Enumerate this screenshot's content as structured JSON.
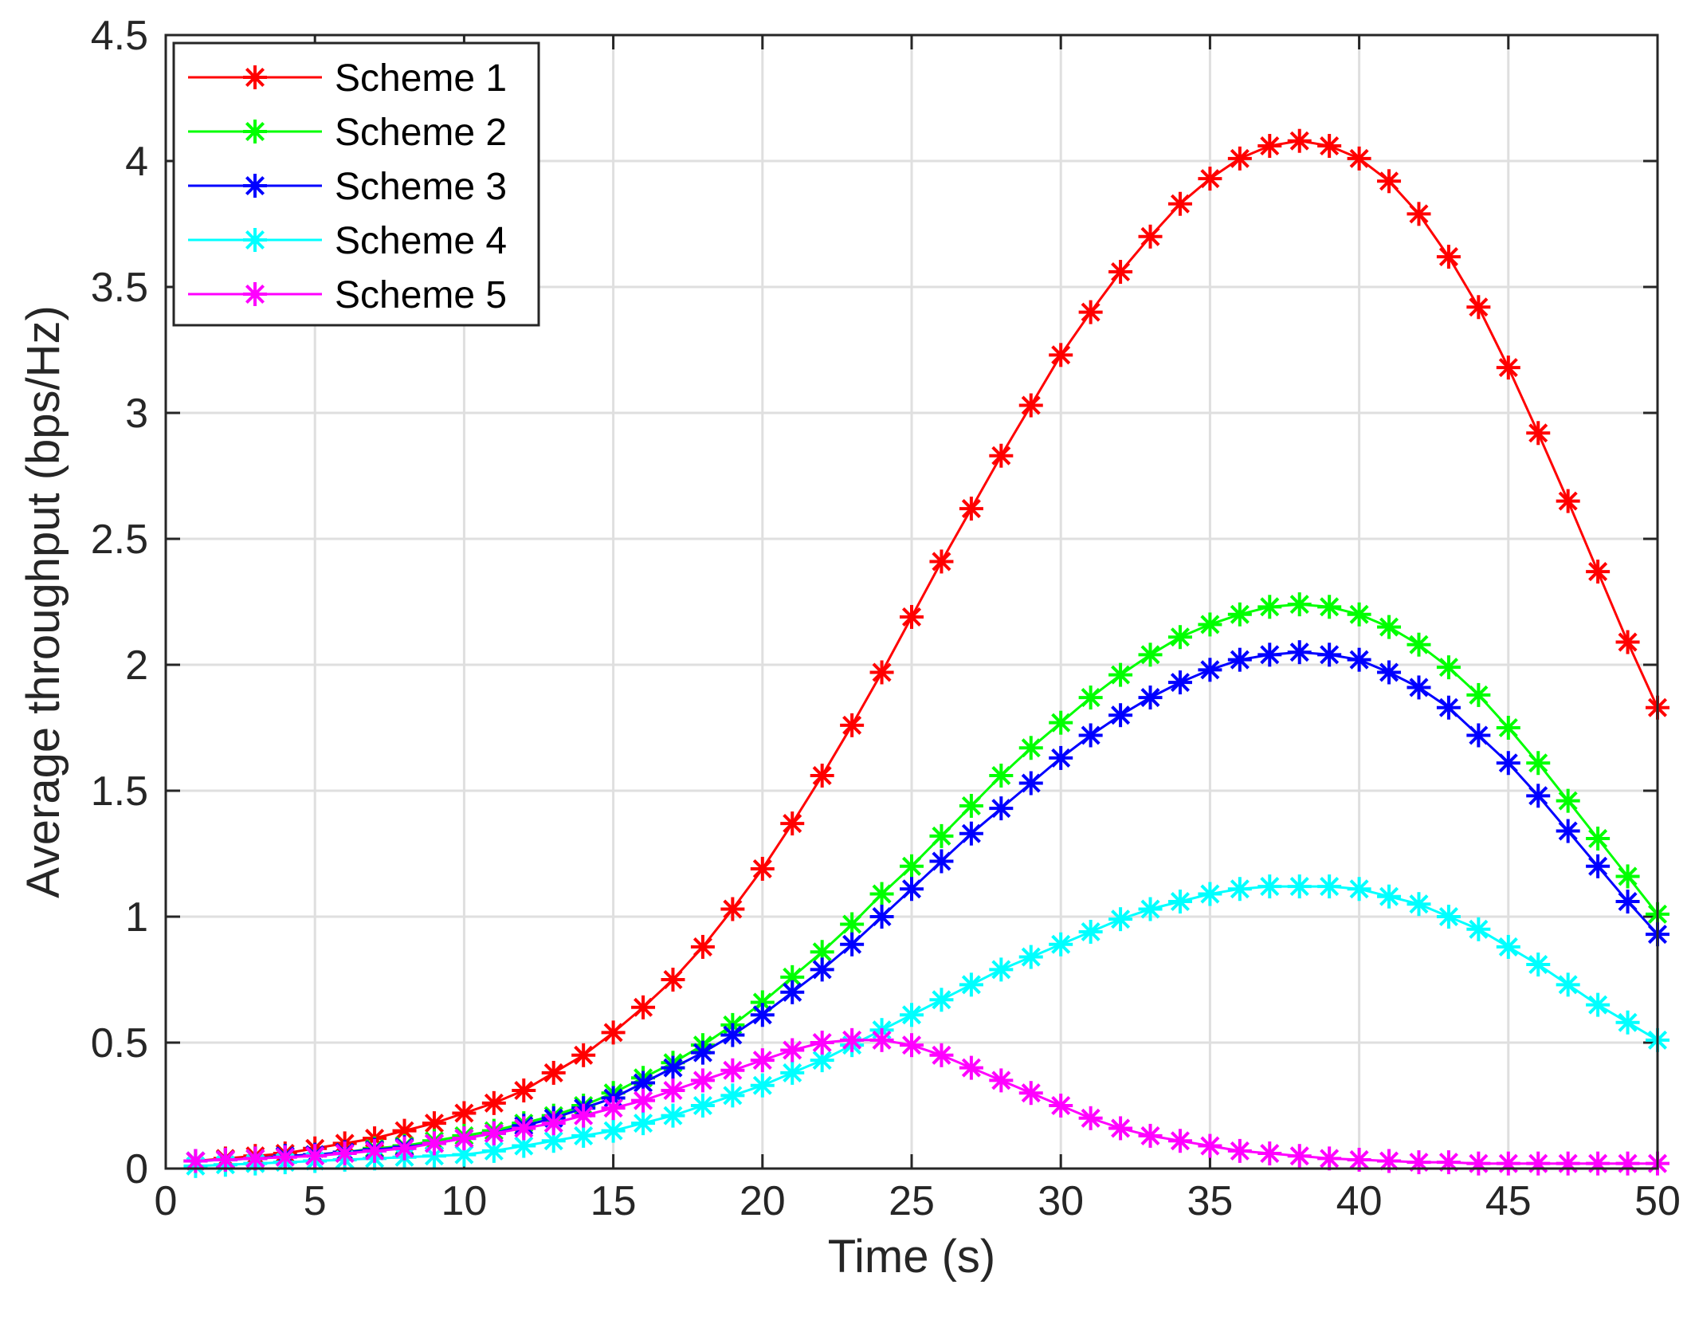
{
  "chart_data": {
    "type": "line",
    "title": "",
    "xlabel": "Time (s)",
    "ylabel": "Average throughput (bps/Hz)",
    "xlim": [
      0,
      50
    ],
    "ylim": [
      0,
      4.5
    ],
    "xticks": [
      0,
      5,
      10,
      15,
      20,
      25,
      30,
      35,
      40,
      45,
      50
    ],
    "yticks": [
      0,
      0.5,
      1,
      1.5,
      2,
      2.5,
      3,
      3.5,
      4,
      4.5
    ],
    "xtick_labels": [
      "0",
      "5",
      "10",
      "15",
      "20",
      "25",
      "30",
      "35",
      "40",
      "45",
      "50"
    ],
    "ytick_labels": [
      "0",
      "0.5",
      "1",
      "1.5",
      "2",
      "2.5",
      "3",
      "3.5",
      "4",
      "4.5"
    ],
    "grid": true,
    "legend_position": "top-left",
    "marker": "asterisk",
    "x": [
      1,
      2,
      3,
      4,
      5,
      6,
      7,
      8,
      9,
      10,
      11,
      12,
      13,
      14,
      15,
      16,
      17,
      18,
      19,
      20,
      21,
      22,
      23,
      24,
      25,
      26,
      27,
      28,
      29,
      30,
      31,
      32,
      33,
      34,
      35,
      36,
      37,
      38,
      39,
      40,
      41,
      42,
      43,
      44,
      45,
      46,
      47,
      48,
      49,
      50
    ],
    "series": [
      {
        "name": "Scheme 1",
        "color": "#ff0000",
        "values": [
          0.03,
          0.04,
          0.05,
          0.06,
          0.08,
          0.1,
          0.12,
          0.15,
          0.18,
          0.22,
          0.26,
          0.31,
          0.38,
          0.45,
          0.54,
          0.64,
          0.75,
          0.88,
          1.03,
          1.19,
          1.37,
          1.56,
          1.76,
          1.97,
          2.19,
          2.41,
          2.62,
          2.83,
          3.03,
          3.23,
          3.4,
          3.56,
          3.7,
          3.83,
          3.93,
          4.01,
          4.06,
          4.08,
          4.06,
          4.01,
          3.92,
          3.79,
          3.62,
          3.42,
          3.18,
          2.92,
          2.65,
          2.37,
          2.09,
          1.83
        ]
      },
      {
        "name": "Scheme 2",
        "color": "#00ff00",
        "values": [
          0.03,
          0.035,
          0.04,
          0.05,
          0.055,
          0.065,
          0.08,
          0.09,
          0.11,
          0.13,
          0.15,
          0.18,
          0.21,
          0.25,
          0.3,
          0.36,
          0.42,
          0.49,
          0.57,
          0.66,
          0.76,
          0.86,
          0.97,
          1.09,
          1.2,
          1.32,
          1.44,
          1.56,
          1.67,
          1.77,
          1.87,
          1.96,
          2.04,
          2.11,
          2.16,
          2.2,
          2.23,
          2.24,
          2.23,
          2.2,
          2.15,
          2.08,
          1.99,
          1.88,
          1.75,
          1.61,
          1.46,
          1.31,
          1.16,
          1.01
        ]
      },
      {
        "name": "Scheme 3",
        "color": "#0000ff",
        "values": [
          0.03,
          0.035,
          0.04,
          0.05,
          0.055,
          0.065,
          0.075,
          0.085,
          0.1,
          0.12,
          0.14,
          0.17,
          0.2,
          0.24,
          0.28,
          0.34,
          0.4,
          0.46,
          0.53,
          0.61,
          0.7,
          0.79,
          0.89,
          1.0,
          1.11,
          1.22,
          1.33,
          1.43,
          1.53,
          1.63,
          1.72,
          1.8,
          1.87,
          1.93,
          1.98,
          2.02,
          2.04,
          2.05,
          2.04,
          2.02,
          1.97,
          1.91,
          1.83,
          1.72,
          1.61,
          1.48,
          1.34,
          1.2,
          1.06,
          0.93
        ]
      },
      {
        "name": "Scheme 4",
        "color": "#00ffff",
        "values": [
          0.01,
          0.015,
          0.02,
          0.025,
          0.03,
          0.035,
          0.04,
          0.045,
          0.05,
          0.055,
          0.07,
          0.09,
          0.11,
          0.13,
          0.15,
          0.18,
          0.21,
          0.25,
          0.29,
          0.33,
          0.38,
          0.43,
          0.49,
          0.55,
          0.61,
          0.67,
          0.73,
          0.79,
          0.84,
          0.89,
          0.94,
          0.99,
          1.03,
          1.06,
          1.09,
          1.11,
          1.12,
          1.12,
          1.12,
          1.11,
          1.08,
          1.05,
          1.0,
          0.95,
          0.88,
          0.81,
          0.73,
          0.65,
          0.58,
          0.51
        ]
      },
      {
        "name": "Scheme 5",
        "color": "#ff00ff",
        "values": [
          0.03,
          0.035,
          0.04,
          0.045,
          0.05,
          0.06,
          0.07,
          0.08,
          0.1,
          0.12,
          0.14,
          0.16,
          0.18,
          0.21,
          0.24,
          0.27,
          0.31,
          0.35,
          0.39,
          0.43,
          0.47,
          0.5,
          0.51,
          0.51,
          0.49,
          0.45,
          0.4,
          0.35,
          0.3,
          0.25,
          0.2,
          0.16,
          0.13,
          0.11,
          0.09,
          0.07,
          0.06,
          0.05,
          0.04,
          0.035,
          0.03,
          0.025,
          0.025,
          0.02,
          0.02,
          0.02,
          0.02,
          0.02,
          0.02,
          0.02
        ]
      }
    ]
  }
}
